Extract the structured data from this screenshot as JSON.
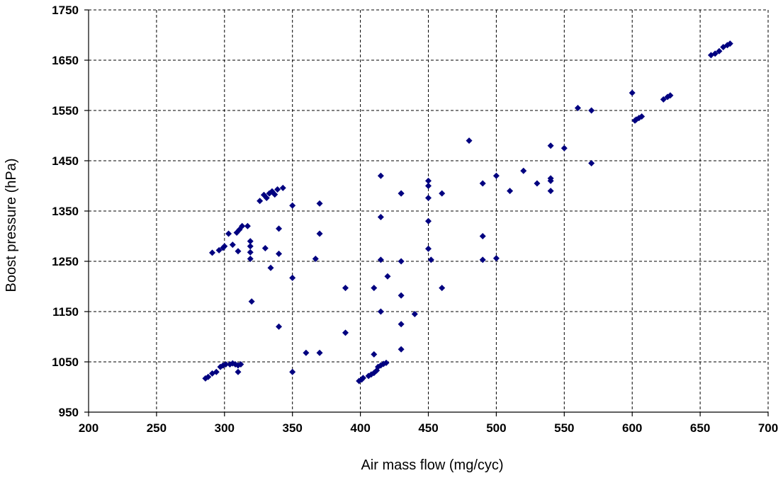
{
  "chart_data": {
    "type": "scatter",
    "title": "",
    "xlabel": "Air mass flow (mg/cyc)",
    "ylabel": "Boost pressure (hPa)",
    "xlim": [
      200,
      700
    ],
    "ylim": [
      950,
      1750
    ],
    "x_ticks": [
      "200",
      "250",
      "300",
      "350",
      "400",
      "450",
      "500",
      "550",
      "600",
      "650",
      "700"
    ],
    "y_ticks": [
      "950",
      "1050",
      "1150",
      "1250",
      "1350",
      "1450",
      "1550",
      "1650",
      "1750"
    ],
    "grid": true,
    "legend": "none",
    "marker": "diamond",
    "color": "#000080",
    "series": [
      {
        "x": [
          286,
          288,
          291,
          294,
          297,
          299,
          301,
          304,
          306,
          308,
          310,
          310,
          312,
          291,
          296,
          299,
          303,
          306,
          309,
          311,
          313,
          317,
          319,
          319,
          319,
          319,
          320,
          310,
          300,
          330,
          334,
          340,
          340,
          350,
          326,
          329,
          331,
          333,
          335,
          337,
          339,
          343,
          350,
          340,
          370,
          370,
          367,
          360,
          370,
          350,
          389,
          389,
          399,
          401,
          402,
          406,
          408,
          410,
          412,
          413,
          415,
          417,
          419,
          410,
          415,
          415,
          415,
          420,
          430,
          430,
          430,
          440,
          430,
          430,
          430,
          415,
          410,
          450,
          450,
          450,
          450,
          450,
          452,
          460,
          460,
          480,
          490,
          490,
          490,
          500,
          500,
          510,
          520,
          530,
          540,
          540,
          540,
          540,
          550,
          560,
          570,
          570,
          600,
          602,
          603,
          605,
          607,
          623,
          626,
          628,
          658,
          661,
          664,
          667,
          670,
          672
        ],
        "y": [
          1017,
          1020,
          1027,
          1030,
          1040,
          1043,
          1045,
          1045,
          1047,
          1045,
          1030,
          1043,
          1045,
          1267,
          1272,
          1277,
          1305,
          1283,
          1307,
          1313,
          1320,
          1320,
          1290,
          1280,
          1268,
          1255,
          1170,
          1270,
          1280,
          1276,
          1237,
          1315,
          1265,
          1217,
          1370,
          1382,
          1376,
          1385,
          1389,
          1383,
          1393,
          1396,
          1361,
          1120,
          1365,
          1305,
          1255,
          1068,
          1068,
          1030,
          1197,
          1108,
          1012,
          1015,
          1018,
          1022,
          1025,
          1028,
          1033,
          1040,
          1043,
          1046,
          1048,
          1197,
          1150,
          1253,
          1338,
          1220,
          1182,
          1125,
          1075,
          1145,
          1250,
          1385,
          1385,
          1420,
          1065,
          1410,
          1400,
          1376,
          1330,
          1275,
          1253,
          1385,
          1197,
          1490,
          1405,
          1300,
          1253,
          1420,
          1256,
          1390,
          1430,
          1405,
          1480,
          1415,
          1410,
          1390,
          1475,
          1555,
          1550,
          1445,
          1585,
          1530,
          1532,
          1535,
          1538,
          1572,
          1577,
          1580,
          1660,
          1663,
          1668,
          1676,
          1680,
          1683
        ]
      }
    ]
  }
}
